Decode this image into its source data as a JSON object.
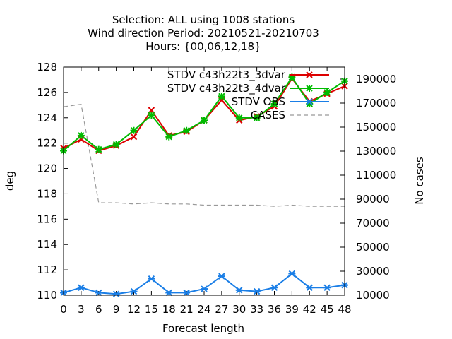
{
  "chart_data": {
    "type": "line",
    "title_lines": [
      "Selection: ALL using  1008 stations",
      "Wind direction   Period: 20210521-20210703",
      "Hours: {00,06,12,18}"
    ],
    "xlabel": "Forecast length",
    "ylabel": "deg",
    "y2label": "No cases",
    "x": [
      0,
      3,
      6,
      9,
      12,
      15,
      18,
      21,
      24,
      27,
      30,
      33,
      36,
      39,
      42,
      45,
      48
    ],
    "xlim": [
      0,
      48
    ],
    "ylim": [
      110,
      128
    ],
    "y_ticks": [
      110,
      112,
      114,
      116,
      118,
      120,
      122,
      124,
      126,
      128
    ],
    "y2lim": [
      10000,
      200000
    ],
    "y2_ticks": [
      10000,
      30000,
      50000,
      70000,
      90000,
      110000,
      130000,
      150000,
      170000,
      190000
    ],
    "grid": false,
    "legend_position": "top-right",
    "series": [
      {
        "name": "STDV c43h22t3_3dvar",
        "axis": "y",
        "color": "#dd0000",
        "dash": "none",
        "marker": "x",
        "values": [
          121.6,
          122.3,
          121.4,
          121.8,
          122.5,
          124.6,
          122.6,
          122.9,
          123.8,
          125.4,
          123.8,
          124.1,
          124.9,
          127.1,
          125.3,
          125.9,
          126.5
        ]
      },
      {
        "name": "STDV c43h22t3_4dvar",
        "axis": "y",
        "color": "#00bb00",
        "dash": "none",
        "marker": "x-plus",
        "values": [
          121.4,
          122.6,
          121.5,
          121.9,
          123.0,
          124.2,
          122.5,
          123.0,
          123.8,
          125.7,
          124.0,
          124.0,
          125.1,
          127.2,
          125.1,
          126.0,
          126.9
        ]
      },
      {
        "name": "STDV OBS",
        "axis": "y",
        "color": "#1a7ee6",
        "dash": "none",
        "marker": "asterisk",
        "values": [
          110.2,
          110.6,
          110.2,
          110.1,
          110.3,
          111.3,
          110.2,
          110.2,
          110.5,
          111.5,
          110.4,
          110.3,
          110.6,
          111.7,
          110.6,
          110.6,
          110.8
        ]
      },
      {
        "name": "CASES",
        "axis": "y2",
        "color": "#999999",
        "dash": "6,4",
        "marker": "none",
        "values": [
          167000,
          169000,
          87000,
          87000,
          86000,
          87000,
          86000,
          86000,
          85000,
          85000,
          85000,
          85000,
          84000,
          85000,
          84000,
          84000,
          84000
        ]
      }
    ]
  }
}
